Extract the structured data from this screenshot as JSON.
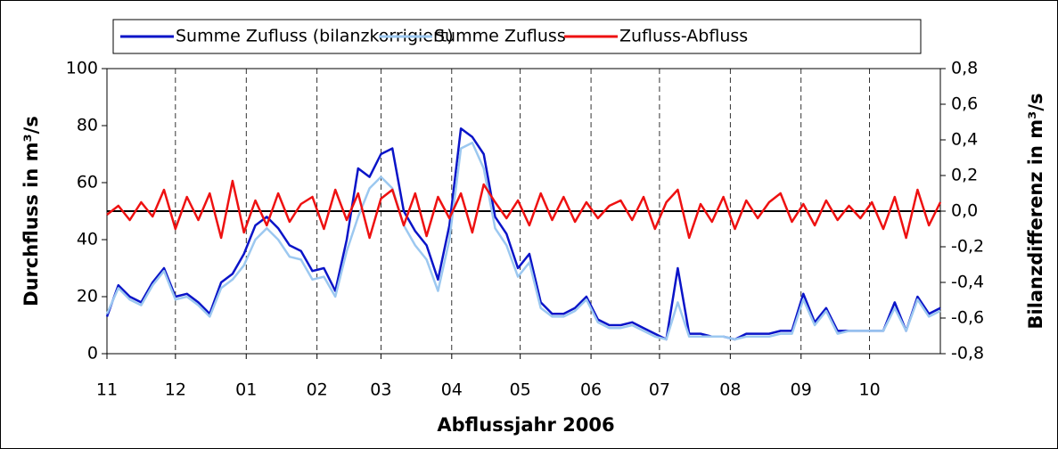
{
  "chart_data": {
    "type": "line",
    "x_label": "Abflussjahr 2006",
    "y_label": "Durchfluss in m³/s",
    "y2_label": "Bilanzdifferenz in m³/s",
    "x": [
      0,
      5,
      10,
      15,
      20,
      25,
      30,
      35,
      40,
      45,
      50,
      55,
      60,
      65,
      70,
      75,
      80,
      85,
      90,
      95,
      100,
      105,
      110,
      115,
      120,
      125,
      130,
      135,
      140,
      145,
      150,
      155,
      160,
      165,
      170,
      175,
      180,
      185,
      190,
      195,
      200,
      205,
      210,
      215,
      220,
      225,
      230,
      235,
      240,
      245,
      250,
      255,
      260,
      265,
      270,
      275,
      280,
      285,
      290,
      295,
      300,
      305,
      310,
      315,
      320,
      325,
      330,
      335,
      340,
      345,
      350,
      355,
      360,
      365
    ],
    "xlim": [
      0,
      365
    ],
    "xticks": [
      {
        "value": 0,
        "label": "11"
      },
      {
        "value": 30,
        "label": "12"
      },
      {
        "value": 61,
        "label": "01"
      },
      {
        "value": 92,
        "label": "02"
      },
      {
        "value": 120,
        "label": "03"
      },
      {
        "value": 151,
        "label": "04"
      },
      {
        "value": 181,
        "label": "05"
      },
      {
        "value": 212,
        "label": "06"
      },
      {
        "value": 242,
        "label": "07"
      },
      {
        "value": 273,
        "label": "08"
      },
      {
        "value": 304,
        "label": "09"
      },
      {
        "value": 334,
        "label": "10"
      }
    ],
    "ylim": [
      0,
      100
    ],
    "yticks": [
      0,
      20,
      40,
      60,
      80,
      100
    ],
    "y2lim": [
      -0.8,
      0.8
    ],
    "y2ticks": [
      {
        "value": -0.8,
        "label": "-0,8"
      },
      {
        "value": -0.6,
        "label": "-0,6"
      },
      {
        "value": -0.4,
        "label": "-0,4"
      },
      {
        "value": -0.2,
        "label": "-0,2"
      },
      {
        "value": 0,
        "label": "0,0"
      },
      {
        "value": 0.2,
        "label": "0,2"
      },
      {
        "value": 0.4,
        "label": "0,4"
      },
      {
        "value": 0.6,
        "label": "0,6"
      },
      {
        "value": 0.8,
        "label": "0,8"
      }
    ],
    "x_grid": true,
    "series": [
      {
        "name": "Summe Zufluss (bilanzkorrigiert)",
        "color": "#0a14c8",
        "values": [
          13,
          24,
          20,
          18,
          25,
          30,
          20,
          21,
          18,
          14,
          25,
          28,
          35,
          45,
          48,
          44,
          38,
          36,
          29,
          30,
          22,
          40,
          65,
          62,
          70,
          72,
          50,
          43,
          38,
          26,
          45,
          79,
          76,
          70,
          48,
          42,
          30,
          35,
          18,
          14,
          14,
          16,
          20,
          12,
          10,
          10,
          11,
          9,
          7,
          5,
          30,
          7,
          7,
          6,
          6,
          5,
          7,
          7,
          7,
          8,
          8,
          21,
          11,
          16,
          8,
          8,
          8,
          8,
          8,
          18,
          8,
          20,
          14,
          16
        ]
      },
      {
        "name": "Summe Zufluss",
        "color": "#9cc8f0",
        "values": [
          14,
          23,
          19,
          17,
          24,
          29,
          19,
          20,
          17,
          13,
          23,
          26,
          31,
          40,
          44,
          40,
          34,
          33,
          26,
          27,
          20,
          36,
          48,
          58,
          62,
          58,
          45,
          38,
          33,
          22,
          40,
          72,
          74,
          65,
          44,
          38,
          27,
          32,
          16,
          13,
          13,
          15,
          19,
          11,
          9,
          9,
          10,
          8,
          6,
          5,
          18,
          6,
          6,
          6,
          6,
          5,
          6,
          6,
          6,
          7,
          7,
          19,
          10,
          15,
          7,
          8,
          8,
          8,
          8,
          16,
          8,
          19,
          13,
          15
        ]
      },
      {
        "name": "Zufluss-Abfluss",
        "color": "#ee1111",
        "axis": "y2",
        "values": [
          -0.02,
          0.03,
          -0.05,
          0.05,
          -0.03,
          0.12,
          -0.1,
          0.08,
          -0.05,
          0.1,
          -0.15,
          0.17,
          -0.12,
          0.06,
          -0.08,
          0.1,
          -0.06,
          0.04,
          0.08,
          -0.1,
          0.12,
          -0.05,
          0.1,
          -0.15,
          0.07,
          0.12,
          -0.08,
          0.1,
          -0.14,
          0.08,
          -0.04,
          0.1,
          -0.12,
          0.15,
          0.05,
          -0.04,
          0.06,
          -0.08,
          0.1,
          -0.05,
          0.08,
          -0.06,
          0.05,
          -0.04,
          0.03,
          0.06,
          -0.05,
          0.08,
          -0.1,
          0.05,
          0.12,
          -0.15,
          0.04,
          -0.06,
          0.08,
          -0.1,
          0.06,
          -0.04,
          0.05,
          0.1,
          -0.06,
          0.04,
          -0.08,
          0.06,
          -0.05,
          0.03,
          -0.04,
          0.05,
          -0.1,
          0.08,
          -0.15,
          0.12,
          -0.08,
          0.05
        ]
      }
    ]
  }
}
